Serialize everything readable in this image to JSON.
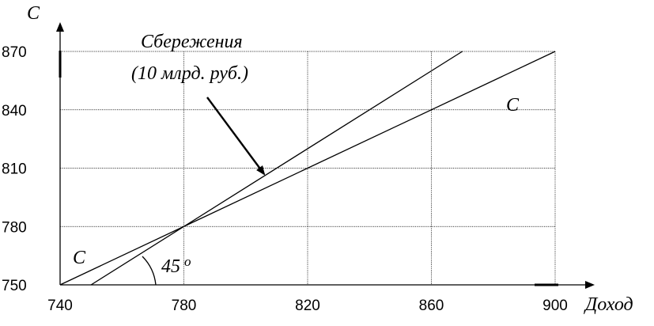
{
  "chart_data": {
    "type": "line",
    "x_ticks": [
      740,
      780,
      820,
      860,
      900
    ],
    "y_ticks": [
      750,
      780,
      810,
      840,
      870
    ],
    "xlim": [
      740,
      900
    ],
    "ylim": [
      750,
      870
    ],
    "xlabel": "Доход",
    "ylabel": "С",
    "grid": true,
    "series": [
      {
        "name": "С",
        "x": [
          740,
          900
        ],
        "y": [
          750,
          870
        ]
      },
      {
        "name": "",
        "x": [
          750,
          870
        ],
        "y": [
          750,
          870
        ]
      }
    ],
    "annotations": {
      "savings_line1": "Сбережения",
      "savings_line2": "(10 млрд. руб.)",
      "angle": "45",
      "degree": "o",
      "consumption_left": "С",
      "consumption_right": "С"
    }
  }
}
